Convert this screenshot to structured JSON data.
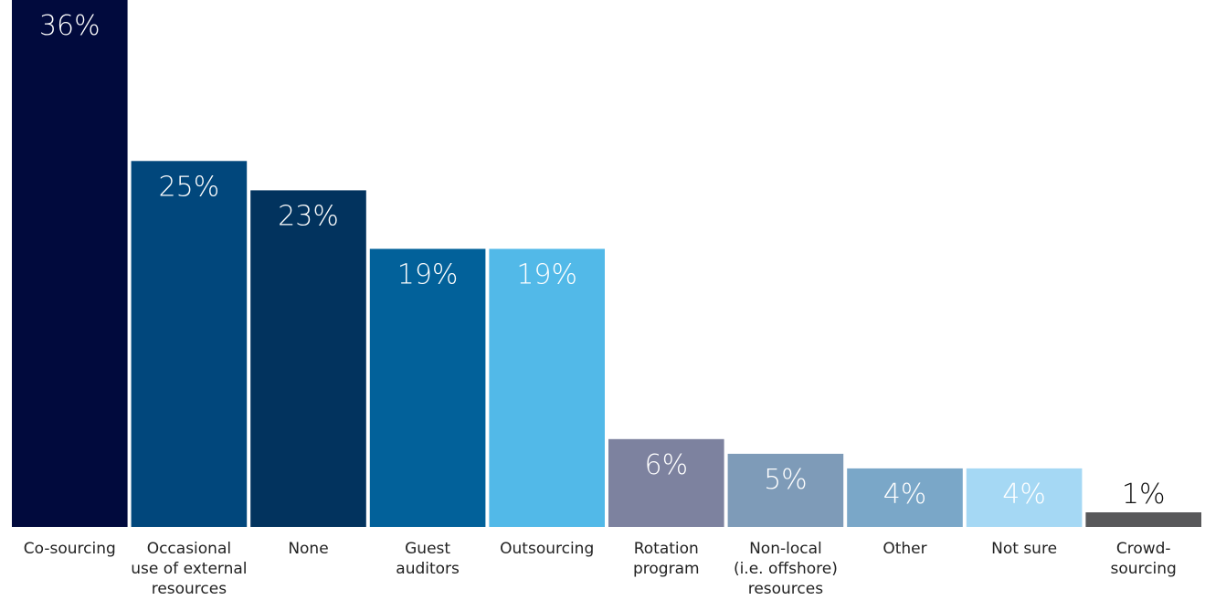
{
  "chart_data": {
    "type": "bar",
    "categories": [
      "Co-sourcing",
      "Occasional use of external resources",
      "None",
      "Guest auditors",
      "Outsourcing",
      "Rotation program",
      "Non-local (i.e. offshore) resources",
      "Other",
      "Not sure",
      "Crowd-sourcing"
    ],
    "category_lines": [
      [
        "Co-sourcing"
      ],
      [
        "Occasional",
        "use of external",
        "resources"
      ],
      [
        "None"
      ],
      [
        "Guest",
        "auditors"
      ],
      [
        "Outsourcing"
      ],
      [
        "Rotation",
        "program"
      ],
      [
        "Non-local",
        "(i.e. offshore)",
        "resources"
      ],
      [
        "Other"
      ],
      [
        "Not sure"
      ],
      [
        "Crowd-",
        "sourcing"
      ]
    ],
    "values": [
      36,
      25,
      23,
      19,
      19,
      6,
      5,
      4,
      4,
      1
    ],
    "data_labels": [
      "36%",
      "25%",
      "23%",
      "19%",
      "19%",
      "6%",
      "5%",
      "4%",
      "4%",
      "1%"
    ],
    "colors": [
      "#010a3d",
      "#01477c",
      "#02335e",
      "#02619a",
      "#52b9e8",
      "#7d829f",
      "#7e9bb8",
      "#7aa7c8",
      "#a5d8f4",
      "#58585a"
    ],
    "label_colors": [
      "#ffffff",
      "#ffffff",
      "#ffffff",
      "#ffffff",
      "#ffffff",
      "#ffffff",
      "#ffffff",
      "#ffffff",
      "#ffffff",
      "#111111"
    ],
    "label_inside": [
      true,
      true,
      true,
      true,
      true,
      true,
      true,
      true,
      true,
      false
    ],
    "title": "",
    "xlabel": "",
    "ylabel": "",
    "ylim": [
      0,
      36
    ],
    "grid": false,
    "legend": "none"
  }
}
